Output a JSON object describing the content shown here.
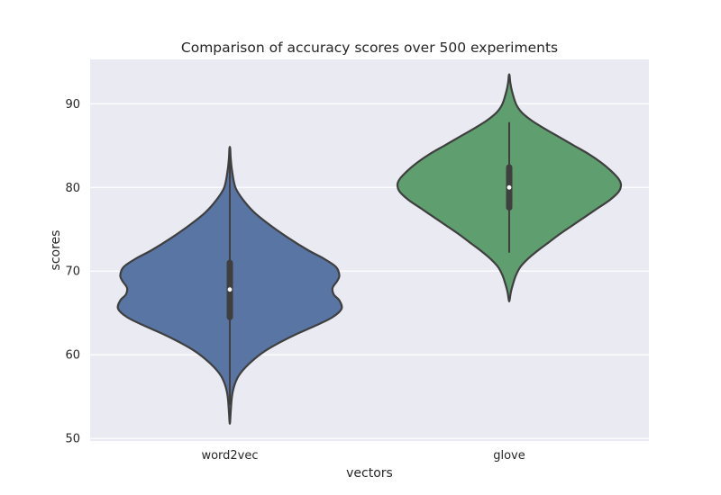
{
  "chart_data": {
    "type": "violin",
    "title": "Comparison of accuracy scores over 500 experiments",
    "xlabel": "vectors",
    "ylabel": "scores",
    "ylim": [
      49.7,
      95.3
    ],
    "yticks": [
      50,
      60,
      70,
      80,
      90
    ],
    "grid": true,
    "colors": {
      "background": "#EAEAF2",
      "grid": "#FFFFFF",
      "outline": "#3F3F3F"
    },
    "categories": [
      "word2vec",
      "glove"
    ],
    "series": [
      {
        "category": "word2vec",
        "color": "#5975A4",
        "min": 51.9,
        "max": 84.7,
        "whisker": [
          54.0,
          84.0
        ],
        "q1": 64.5,
        "median": 67.8,
        "q3": 71.0,
        "density_profile": [
          [
            84.7,
            0.003
          ],
          [
            83.5,
            0.008
          ],
          [
            82.0,
            0.02
          ],
          [
            80.0,
            0.05
          ],
          [
            78.5,
            0.12
          ],
          [
            77.0,
            0.22
          ],
          [
            75.5,
            0.36
          ],
          [
            74.0,
            0.52
          ],
          [
            72.5,
            0.7
          ],
          [
            71.5,
            0.84
          ],
          [
            70.5,
            0.95
          ],
          [
            69.5,
            0.98
          ],
          [
            68.8,
            0.96
          ],
          [
            68.0,
            0.92
          ],
          [
            67.2,
            0.93
          ],
          [
            66.5,
            0.98
          ],
          [
            65.5,
            1.0
          ],
          [
            64.5,
            0.92
          ],
          [
            63.5,
            0.77
          ],
          [
            62.5,
            0.6
          ],
          [
            61.5,
            0.45
          ],
          [
            60.5,
            0.32
          ],
          [
            59.5,
            0.22
          ],
          [
            58.5,
            0.14
          ],
          [
            57.5,
            0.08
          ],
          [
            56.5,
            0.045
          ],
          [
            55.5,
            0.025
          ],
          [
            54.5,
            0.015
          ],
          [
            53.0,
            0.007
          ],
          [
            51.9,
            0.002
          ]
        ]
      },
      {
        "category": "glove",
        "color": "#5F9E6E",
        "min": 66.5,
        "max": 93.4,
        "whisker": [
          72.2,
          87.8
        ],
        "q1": 77.6,
        "median": 80.0,
        "q3": 82.4,
        "density_profile": [
          [
            93.4,
            0.003
          ],
          [
            92.5,
            0.01
          ],
          [
            91.5,
            0.025
          ],
          [
            90.0,
            0.06
          ],
          [
            89.0,
            0.11
          ],
          [
            88.0,
            0.2
          ],
          [
            87.0,
            0.32
          ],
          [
            86.0,
            0.45
          ],
          [
            85.0,
            0.58
          ],
          [
            84.0,
            0.71
          ],
          [
            83.0,
            0.82
          ],
          [
            82.0,
            0.91
          ],
          [
            81.0,
            0.98
          ],
          [
            80.3,
            1.0
          ],
          [
            79.5,
            0.98
          ],
          [
            78.5,
            0.9
          ],
          [
            77.5,
            0.79
          ],
          [
            76.5,
            0.68
          ],
          [
            75.5,
            0.57
          ],
          [
            74.5,
            0.46
          ],
          [
            73.5,
            0.36
          ],
          [
            72.5,
            0.26
          ],
          [
            71.5,
            0.17
          ],
          [
            70.5,
            0.1
          ],
          [
            69.5,
            0.06
          ],
          [
            68.5,
            0.035
          ],
          [
            67.5,
            0.015
          ],
          [
            66.5,
            0.003
          ]
        ]
      }
    ]
  }
}
